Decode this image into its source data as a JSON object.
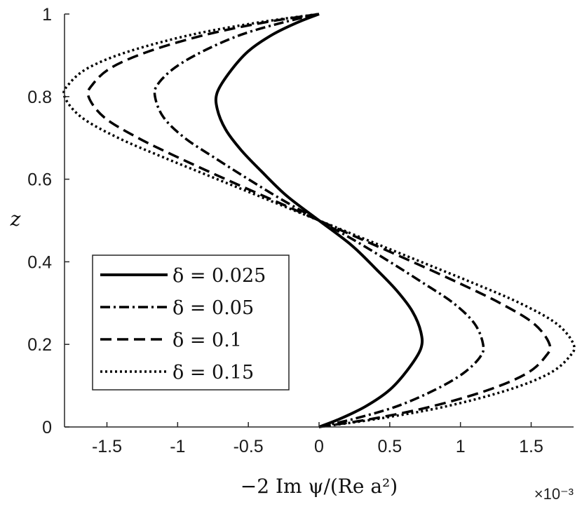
{
  "chart_data": {
    "type": "line",
    "title": "",
    "xlabel": "−2 Im ψ/(Re a²)",
    "ylabel": "z",
    "x_exponent_label": "×10⁻³",
    "xlim": [
      -1.8,
      1.8
    ],
    "ylim": [
      0,
      1
    ],
    "xticks": [
      -1.5,
      -1,
      -0.5,
      0,
      0.5,
      1,
      1.5
    ],
    "xtick_labels": [
      "-1.5",
      "-1",
      "-0.5",
      "0",
      "0.5",
      "1",
      "1.5"
    ],
    "yticks": [
      0,
      0.2,
      0.4,
      0.6,
      0.8,
      1
    ],
    "ytick_labels": [
      "0",
      "0.2",
      "0.4",
      "0.6",
      "0.8",
      "1"
    ],
    "grid": false,
    "legend_position": "lower-left",
    "line_color": "#000000",
    "series": [
      {
        "name": "δ = 0.025",
        "style": "solid",
        "points": [
          [
            0,
            0
          ],
          [
            0.15,
            0.02
          ],
          [
            0.33,
            0.05
          ],
          [
            0.5,
            0.09
          ],
          [
            0.63,
            0.14
          ],
          [
            0.72,
            0.19
          ],
          [
            0.72,
            0.23
          ],
          [
            0.66,
            0.28
          ],
          [
            0.55,
            0.33
          ],
          [
            0.41,
            0.38
          ],
          [
            0.23,
            0.44
          ],
          [
            0,
            0.5
          ],
          [
            -0.23,
            0.56
          ],
          [
            -0.41,
            0.62
          ],
          [
            -0.55,
            0.67
          ],
          [
            -0.66,
            0.72
          ],
          [
            -0.72,
            0.77
          ],
          [
            -0.72,
            0.81
          ],
          [
            -0.63,
            0.86
          ],
          [
            -0.5,
            0.91
          ],
          [
            -0.33,
            0.95
          ],
          [
            -0.15,
            0.98
          ],
          [
            0,
            1
          ]
        ]
      },
      {
        "name": "δ = 0.05",
        "style": "dashdot",
        "points": [
          [
            0,
            0
          ],
          [
            0.25,
            0.02
          ],
          [
            0.55,
            0.05
          ],
          [
            0.82,
            0.09
          ],
          [
            1.02,
            0.13
          ],
          [
            1.14,
            0.17
          ],
          [
            1.16,
            0.2
          ],
          [
            1.1,
            0.25
          ],
          [
            0.95,
            0.3
          ],
          [
            0.73,
            0.35
          ],
          [
            0.5,
            0.4
          ],
          [
            0.26,
            0.45
          ],
          [
            0,
            0.5
          ],
          [
            -0.26,
            0.55
          ],
          [
            -0.5,
            0.6
          ],
          [
            -0.73,
            0.65
          ],
          [
            -0.95,
            0.7
          ],
          [
            -1.1,
            0.75
          ],
          [
            -1.16,
            0.8
          ],
          [
            -1.14,
            0.83
          ],
          [
            -1.02,
            0.87
          ],
          [
            -0.82,
            0.91
          ],
          [
            -0.55,
            0.95
          ],
          [
            -0.25,
            0.98
          ],
          [
            0,
            1
          ]
        ]
      },
      {
        "name": "δ = 0.1",
        "style": "dashed",
        "points": [
          [
            0,
            0
          ],
          [
            0.38,
            0.02
          ],
          [
            0.8,
            0.05
          ],
          [
            1.2,
            0.09
          ],
          [
            1.47,
            0.13
          ],
          [
            1.6,
            0.17
          ],
          [
            1.63,
            0.2
          ],
          [
            1.52,
            0.25
          ],
          [
            1.28,
            0.3
          ],
          [
            0.98,
            0.35
          ],
          [
            0.66,
            0.4
          ],
          [
            0.33,
            0.45
          ],
          [
            0,
            0.5
          ],
          [
            -0.33,
            0.55
          ],
          [
            -0.66,
            0.6
          ],
          [
            -0.98,
            0.65
          ],
          [
            -1.28,
            0.7
          ],
          [
            -1.52,
            0.75
          ],
          [
            -1.63,
            0.8
          ],
          [
            -1.6,
            0.83
          ],
          [
            -1.47,
            0.87
          ],
          [
            -1.2,
            0.91
          ],
          [
            -0.8,
            0.95
          ],
          [
            -0.38,
            0.98
          ],
          [
            0,
            1
          ]
        ]
      },
      {
        "name": "δ = 0.15",
        "style": "dotted",
        "points": [
          [
            0,
            0
          ],
          [
            0.42,
            0.02
          ],
          [
            0.9,
            0.05
          ],
          [
            1.34,
            0.09
          ],
          [
            1.63,
            0.13
          ],
          [
            1.77,
            0.17
          ],
          [
            1.8,
            0.2
          ],
          [
            1.68,
            0.25
          ],
          [
            1.42,
            0.3
          ],
          [
            1.08,
            0.35
          ],
          [
            0.72,
            0.4
          ],
          [
            0.36,
            0.45
          ],
          [
            0,
            0.5
          ],
          [
            -0.36,
            0.55
          ],
          [
            -0.72,
            0.6
          ],
          [
            -1.08,
            0.65
          ],
          [
            -1.42,
            0.7
          ],
          [
            -1.68,
            0.75
          ],
          [
            -1.8,
            0.8
          ],
          [
            -1.77,
            0.83
          ],
          [
            -1.63,
            0.87
          ],
          [
            -1.34,
            0.91
          ],
          [
            -0.9,
            0.95
          ],
          [
            -0.42,
            0.98
          ],
          [
            0,
            1
          ]
        ]
      }
    ]
  }
}
